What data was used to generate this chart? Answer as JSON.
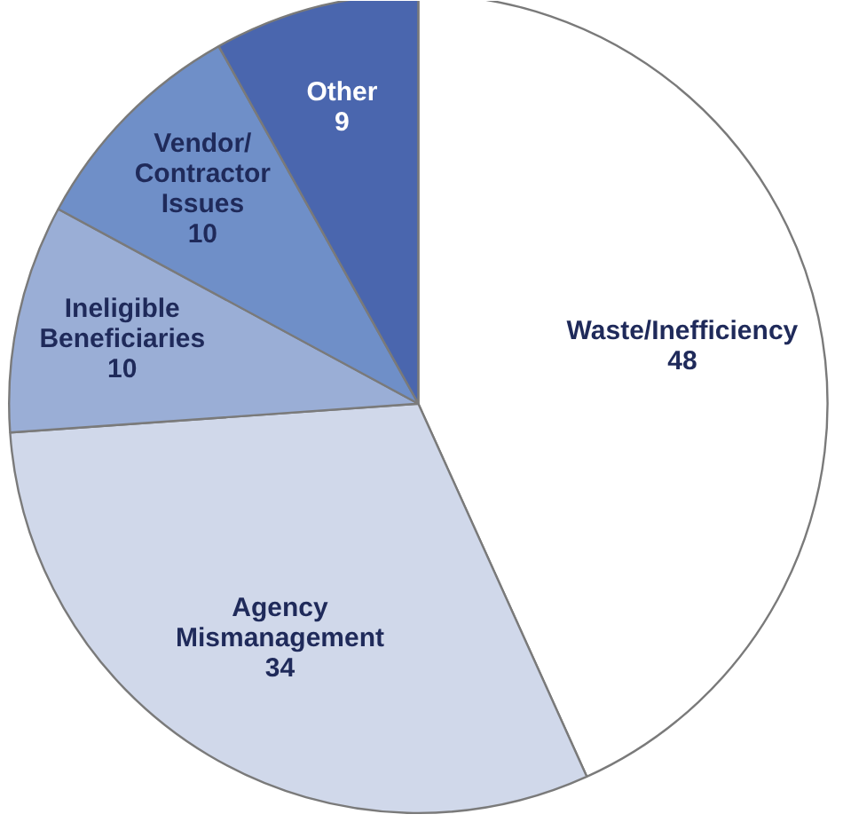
{
  "chart_data": {
    "type": "pie",
    "categories": [
      "Waste/Inefficiency",
      "Agency\nMismanagement",
      "Ineligible\nBeneficiaries",
      "Vendor/\nContractor\nIssues",
      "Other"
    ],
    "values": [
      48,
      34,
      10,
      10,
      9
    ],
    "colors": [
      "#ffffff",
      "#d0d8ea",
      "#9aaed6",
      "#6f8fc8",
      "#4a66ae"
    ],
    "data_labels": true
  }
}
